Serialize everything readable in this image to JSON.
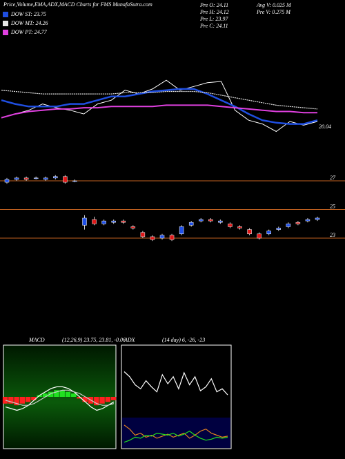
{
  "chart_data": [
    {
      "type": "line",
      "title": "Price,Volume,EMA,ADX,MACD Charts for FMS MunafaSutra.com",
      "info": [
        "Pre  O: 24.11",
        "Pre  H: 24.12",
        "Pre  L: 23.97",
        "Pre  C: 24.11",
        "Avg  V: 0.025 M",
        "Pre  V: 0.275 M"
      ],
      "annotation": "20.04",
      "ylim": [
        19.5,
        27.5
      ],
      "color": "#ffffff",
      "values": [
        21.4,
        21.7,
        22.0,
        22.5,
        22.2,
        22.0,
        21.7,
        22.5,
        22.8,
        23.6,
        23.3,
        23.7,
        24.4,
        23.6,
        23.9,
        24.2,
        24.3,
        22.0,
        21.2,
        20.9,
        20.3,
        21.1,
        20.8,
        21.1
      ],
      "series": [
        {
          "name": "DOW ST: 23.75",
          "color": "#1f4ee0",
          "values": [
            22.8,
            22.5,
            22.3,
            22.3,
            22.3,
            22.5,
            22.5,
            22.8,
            23.1,
            23.1,
            23.3,
            23.5,
            23.6,
            23.7,
            23.7,
            23.3,
            22.8,
            22.3,
            21.7,
            21.2,
            21.0,
            20.9,
            20.9,
            21.2
          ]
        },
        {
          "name": "DOW MT: 24.26",
          "color": "#e8e8e8",
          "values": [
            23.6,
            23.5,
            23.4,
            23.3,
            23.3,
            23.3,
            23.3,
            23.3,
            23.3,
            23.4,
            23.4,
            23.4,
            23.5,
            23.5,
            23.5,
            23.4,
            23.2,
            23.0,
            22.8,
            22.6,
            22.4,
            22.3,
            22.2,
            22.1
          ]
        },
        {
          "name": "DOW PT: 24.77",
          "color": "#e040e0",
          "values": [
            21.4,
            21.7,
            21.9,
            22.0,
            22.1,
            22.1,
            22.2,
            22.2,
            22.3,
            22.3,
            22.3,
            22.3,
            22.4,
            22.4,
            22.4,
            22.4,
            22.3,
            22.2,
            22.1,
            22.0,
            21.9,
            21.9,
            21.8,
            21.8
          ]
        }
      ]
    },
    {
      "type": "candlestick",
      "ylim": [
        22.76,
        28.06
      ],
      "yticks": [
        23,
        25,
        27
      ],
      "open": [
        26.9,
        27.1,
        27.2,
        27.2,
        27.1,
        27.2,
        27.3,
        27.0,
        23.9,
        24.3,
        24.0,
        24.1,
        24.2,
        23.8,
        23.4,
        23.1,
        23.0,
        23.2,
        23.3,
        23.9,
        24.2,
        24.3,
        24.1,
        24.0,
        23.8,
        23.6,
        23.3,
        23.3,
        23.6,
        23.8,
        24.1,
        24.2,
        24.3
      ],
      "close": [
        27.1,
        27.2,
        27.1,
        27.2,
        27.2,
        27.3,
        26.9,
        27.0,
        24.4,
        24.0,
        24.2,
        24.2,
        24.1,
        23.7,
        23.1,
        22.9,
        23.2,
        22.9,
        23.8,
        24.1,
        24.3,
        24.2,
        24.2,
        23.8,
        23.7,
        23.3,
        23.0,
        23.5,
        23.7,
        24.0,
        24.0,
        24.3,
        24.4
      ],
      "high": [
        27.2,
        27.3,
        27.3,
        27.3,
        27.3,
        27.4,
        27.4,
        27.1,
        24.6,
        24.5,
        24.3,
        24.3,
        24.3,
        23.9,
        23.5,
        23.2,
        23.3,
        23.3,
        23.9,
        24.2,
        24.4,
        24.4,
        24.3,
        24.1,
        23.9,
        23.7,
        23.4,
        23.6,
        23.8,
        24.1,
        24.2,
        24.4,
        24.5
      ],
      "low": [
        26.8,
        27.0,
        27.0,
        27.1,
        27.0,
        27.1,
        26.8,
        26.9,
        23.6,
        23.9,
        23.9,
        24.0,
        24.0,
        23.6,
        23.0,
        22.8,
        22.9,
        22.8,
        23.2,
        23.8,
        24.1,
        24.1,
        24.0,
        23.7,
        23.6,
        23.2,
        22.9,
        23.2,
        23.5,
        23.7,
        23.9,
        24.1,
        24.2
      ],
      "up_color": "#2050e8",
      "down_color": "#e01818",
      "grid_color": "#c06020"
    },
    {
      "type": "macd",
      "title": "MACD",
      "subtitle": "(12,26,9) 23.75, 23.81, -0.06",
      "ylim": [
        -1.5,
        1.5
      ],
      "histogram": [
        -0.2,
        -0.2,
        -0.25,
        -0.2,
        -0.15,
        -0.1,
        0.05,
        0.1,
        0.15,
        0.2,
        0.2,
        0.15,
        0.1,
        -0.05,
        -0.15,
        -0.2,
        -0.25,
        -0.2,
        -0.15,
        -0.1
      ],
      "up_color": "#20e020",
      "down_color": "#ff2020",
      "series": [
        {
          "color": "#ffffff",
          "values": [
            -0.3,
            -0.35,
            -0.4,
            -0.35,
            -0.25,
            -0.1,
            0.05,
            0.15,
            0.25,
            0.3,
            0.3,
            0.25,
            0.15,
            0.0,
            -0.15,
            -0.3,
            -0.4,
            -0.35,
            -0.25,
            -0.15
          ]
        },
        {
          "color": "#cccccc",
          "values": [
            -0.1,
            -0.15,
            -0.2,
            -0.25,
            -0.25,
            -0.2,
            -0.1,
            0.0,
            0.1,
            0.15,
            0.2,
            0.2,
            0.15,
            0.1,
            0.0,
            -0.1,
            -0.2,
            -0.25,
            -0.25,
            -0.2
          ]
        }
      ]
    },
    {
      "type": "line",
      "title": "ADX",
      "subtitle": "(14 day) 6, -26, -23",
      "ylim": [
        0,
        100
      ],
      "series": [
        {
          "color": "#ffffff",
          "values": [
            75,
            70,
            62,
            58,
            66,
            60,
            55,
            72,
            63,
            70,
            58,
            74,
            62,
            70,
            56,
            60,
            68,
            55,
            58,
            52
          ]
        },
        {
          "color": "#e08020",
          "values": [
            22,
            18,
            12,
            14,
            10,
            12,
            9,
            11,
            13,
            10,
            12,
            14,
            9,
            12,
            16,
            18,
            14,
            12,
            10,
            11
          ]
        },
        {
          "color": "#20e020",
          "values": [
            5,
            7,
            10,
            9,
            12,
            11,
            14,
            13,
            12,
            14,
            11,
            13,
            16,
            12,
            9,
            7,
            8,
            10,
            9,
            10
          ]
        }
      ]
    }
  ]
}
